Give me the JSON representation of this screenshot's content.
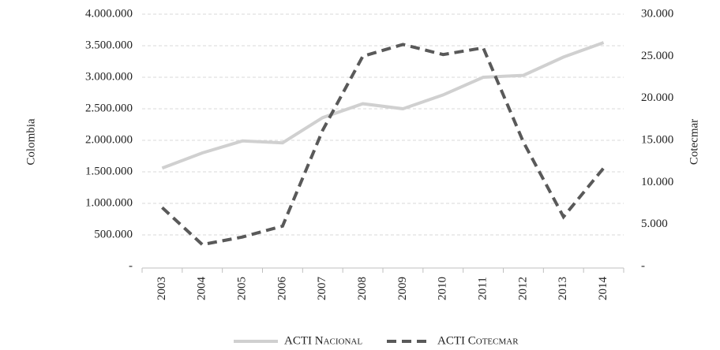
{
  "chart_data": {
    "type": "line",
    "y_label": "Colombia",
    "y2_label": "Cotecmar",
    "categories": [
      "2003",
      "2004",
      "2005",
      "2006",
      "2007",
      "2008",
      "2009",
      "2010",
      "2011",
      "2012",
      "2013",
      "2014"
    ],
    "series": [
      {
        "name": "ACTI Nacional",
        "color": "#d0d0d0",
        "linestyle": "solid",
        "axis": "y",
        "values": [
          1560000,
          1800000,
          1990000,
          1960000,
          2360000,
          2580000,
          2500000,
          2720000,
          3000000,
          3030000,
          3320000,
          3550000
        ]
      },
      {
        "name": "ACTI Cotecmar",
        "color": "#595959",
        "linestyle": "dashed",
        "axis": "y2",
        "values": [
          7000,
          2600,
          3500,
          4800,
          16200,
          25000,
          26400,
          25200,
          26000,
          14800,
          5900,
          11700
        ]
      }
    ],
    "ylim": [
      0,
      4000000
    ],
    "yticks": [
      {
        "value": 0,
        "label": "-"
      },
      {
        "value": 500000,
        "label": "500.000"
      },
      {
        "value": 1000000,
        "label": "1.000.000"
      },
      {
        "value": 1500000,
        "label": "1.500.000"
      },
      {
        "value": 2000000,
        "label": "2.000.000"
      },
      {
        "value": 2500000,
        "label": "2.500.000"
      },
      {
        "value": 3000000,
        "label": "3.000.000"
      },
      {
        "value": 3500000,
        "label": "3.500.000"
      },
      {
        "value": 4000000,
        "label": "4.000.000"
      }
    ],
    "y2lim": [
      0,
      30000
    ],
    "y2ticks": [
      {
        "value": 0,
        "label": "-"
      },
      {
        "value": 5000,
        "label": "5.000"
      },
      {
        "value": 10000,
        "label": "10.000"
      },
      {
        "value": 15000,
        "label": "15.000"
      },
      {
        "value": 20000,
        "label": "20.000"
      },
      {
        "value": 25000,
        "label": "25.000"
      },
      {
        "value": 30000,
        "label": "30.000"
      }
    ],
    "grid": true,
    "legend": "bottom"
  }
}
